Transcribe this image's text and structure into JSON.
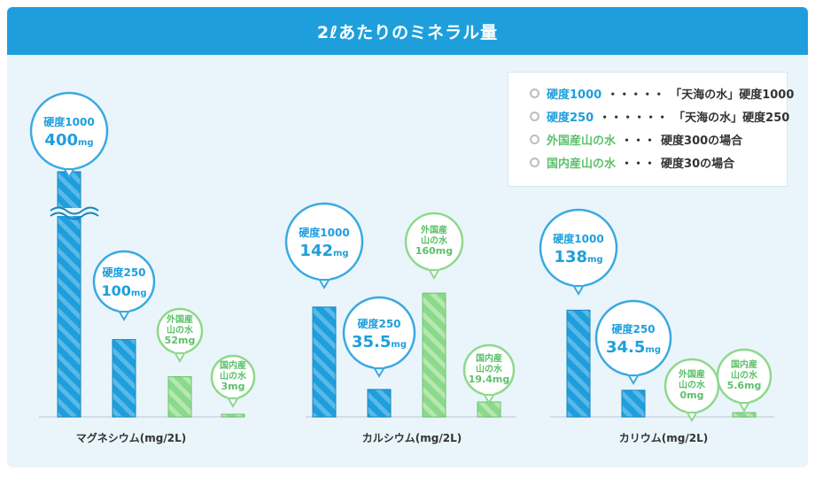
{
  "title": "2ℓあたりのミネラル量",
  "legend": [
    {
      "name": "硬度1000",
      "leader": "・・・・・",
      "desc": "「天海の水」硬度1000",
      "color": "#1e9fdc"
    },
    {
      "name": "硬度250",
      "leader": "・・・・・・",
      "desc": "「天海の水」硬度250",
      "color": "#1e9fdc"
    },
    {
      "name": "外国産山の水",
      "leader": "・・・",
      "desc": "硬度300の場合",
      "color": "#5cc16a"
    },
    {
      "name": "国内産山の水",
      "leader": "・・・",
      "desc": "硬度30の場合",
      "color": "#5cc16a"
    }
  ],
  "colors": {
    "blue": "#1e9fdc",
    "blue_light": "#5bb9ea",
    "green": "#8bd98a",
    "green_light": "#b6e8b1",
    "green_text": "#5cc16a",
    "axis": "#c7d6de"
  },
  "chart_data": [
    {
      "type": "bar",
      "xlabel": "マグネシウム(mg/2L)",
      "axis_break": true,
      "series": [
        {
          "name": "硬度1000",
          "label": [
            "硬度1000",
            "400mg"
          ],
          "value": 400
        },
        {
          "name": "硬度250",
          "label": [
            "硬度250",
            "100mg"
          ],
          "value": 100
        },
        {
          "name": "外国産山の水",
          "label": [
            "外国産",
            "山の水",
            "52mg"
          ],
          "value": 52
        },
        {
          "name": "国内産山の水",
          "label": [
            "国内産",
            "山の水",
            "3mg"
          ],
          "value": 3
        }
      ]
    },
    {
      "type": "bar",
      "xlabel": "カルシウム(mg/2L)",
      "axis_break": false,
      "series": [
        {
          "name": "硬度1000",
          "label": [
            "硬度1000",
            "142mg"
          ],
          "value": 142
        },
        {
          "name": "硬度250",
          "label": [
            "硬度250",
            "35.5mg"
          ],
          "value": 35.5
        },
        {
          "name": "外国産山の水",
          "label": [
            "外国産",
            "山の水",
            "160mg"
          ],
          "value": 160
        },
        {
          "name": "国内産山の水",
          "label": [
            "国内産",
            "山の水",
            "19.4mg"
          ],
          "value": 19.4
        }
      ]
    },
    {
      "type": "bar",
      "xlabel": "カリウム(mg/2L)",
      "axis_break": false,
      "series": [
        {
          "name": "硬度1000",
          "label": [
            "硬度1000",
            "138mg"
          ],
          "value": 138
        },
        {
          "name": "硬度250",
          "label": [
            "硬度250",
            "34.5mg"
          ],
          "value": 34.5
        },
        {
          "name": "外国産山の水",
          "label": [
            "外国産",
            "山の水",
            "0mg"
          ],
          "value": 0
        },
        {
          "name": "国内産山の水",
          "label": [
            "国内産",
            "山の水",
            "5.6mg"
          ],
          "value": 5.6
        }
      ]
    }
  ]
}
